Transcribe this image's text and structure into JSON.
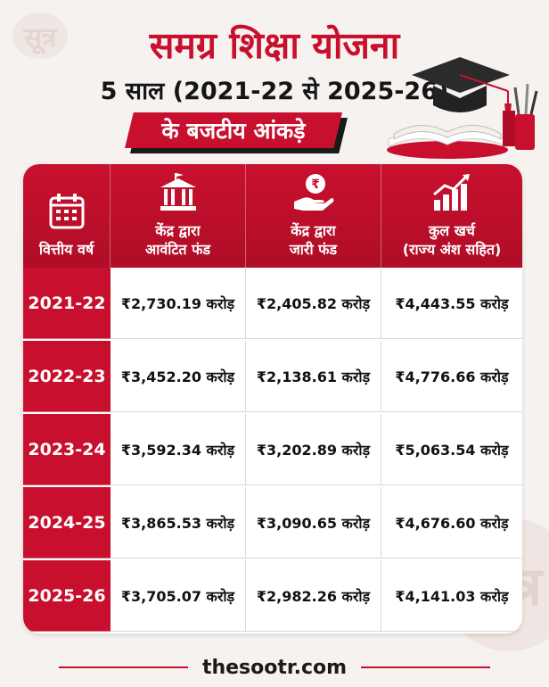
{
  "brand": {
    "logo_text": "सूत्र",
    "website": "thesootr.com",
    "accent": "#c8102e"
  },
  "headline": {
    "title": "समग्र शिक्षा योजना",
    "subtitle": "5 साल (2021-22 से 2025-26)",
    "ribbon": "के बजटीय आंकड़े"
  },
  "table": {
    "headers": [
      {
        "icon": "calendar-icon",
        "label_lines": [
          "वित्तीय वर्ष"
        ]
      },
      {
        "icon": "government-building-icon",
        "label_lines": [
          "केंद्र द्वारा",
          "आवंटित फंड"
        ]
      },
      {
        "icon": "rupee-hand-icon",
        "label_lines": [
          "केंद्र द्वारा",
          "जारी फंड"
        ]
      },
      {
        "icon": "growth-chart-icon",
        "label_lines": [
          "कुल खर्च",
          "(राज्य अंश सहित)"
        ]
      }
    ],
    "rows": [
      {
        "year": "2021-22",
        "allocated": "₹2,730.19 करोड़",
        "released": "₹2,405.82 करोड़",
        "total": "₹4,443.55 करोड़"
      },
      {
        "year": "2022-23",
        "allocated": "₹3,452.20 करोड़",
        "released": "₹2,138.61 करोड़",
        "total": "₹4,776.66 करोड़"
      },
      {
        "year": "2023-24",
        "allocated": "₹3,592.34 करोड़",
        "released": "₹3,202.89 करोड़",
        "total": "₹5,063.54 करोड़"
      },
      {
        "year": "2024-25",
        "allocated": "₹3,865.53 करोड़",
        "released": "₹3,090.65 करोड़",
        "total": "₹4,676.60 करोड़"
      },
      {
        "year": "2025-26",
        "allocated": "₹3,705.07 करोड़",
        "released": "₹2,982.26 करोड़",
        "total": "₹4,141.03 करोड़"
      }
    ]
  }
}
